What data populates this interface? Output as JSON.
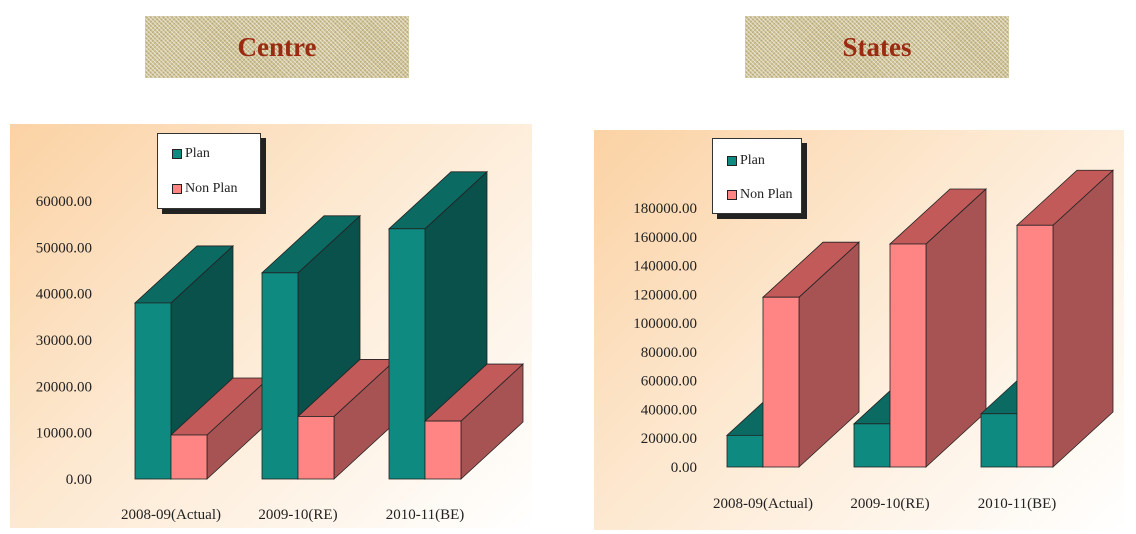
{
  "banners": {
    "left": "Centre",
    "right": "States"
  },
  "colors": {
    "plan": "#0f8a80",
    "plan_top": "#0b6a62",
    "plan_side": "#0a504b",
    "nonplan": "#ff8585",
    "nonplan_top": "#c25a5a",
    "nonplan_side": "#a85353",
    "banner_text": "#9a2a10"
  },
  "chart_data": [
    {
      "type": "bar",
      "title": "Centre",
      "legend": [
        "Plan",
        "Non Plan"
      ],
      "legend_position": "top-left",
      "categories": [
        "2008-09(Actual)",
        "2009-10(RE)",
        "2010-11(BE)"
      ],
      "series": [
        {
          "name": "Plan",
          "values": [
            38000,
            44500,
            54000
          ]
        },
        {
          "name": "Non Plan",
          "values": [
            9500,
            13500,
            12500
          ]
        }
      ],
      "ylim": [
        0,
        60000
      ],
      "yticks": [
        "0.00",
        "10000.00",
        "20000.00",
        "30000.00",
        "40000.00",
        "50000.00",
        "60000.00"
      ],
      "grid": false
    },
    {
      "type": "bar",
      "title": "States",
      "legend": [
        "Plan",
        "Non Plan"
      ],
      "legend_position": "top-left",
      "categories": [
        "2008-09(Actual)",
        "2009-10(RE)",
        "2010-11(BE)"
      ],
      "series": [
        {
          "name": "Plan",
          "values": [
            22000,
            30000,
            37000
          ]
        },
        {
          "name": "Non Plan",
          "values": [
            118000,
            155000,
            168000
          ]
        }
      ],
      "ylim": [
        0,
        180000
      ],
      "yticks": [
        "0.00",
        "20000.00",
        "40000.00",
        "60000.00",
        "80000.00",
        "100000.00",
        "120000.00",
        "140000.00",
        "160000.00",
        "180000.00"
      ],
      "grid": false
    }
  ]
}
